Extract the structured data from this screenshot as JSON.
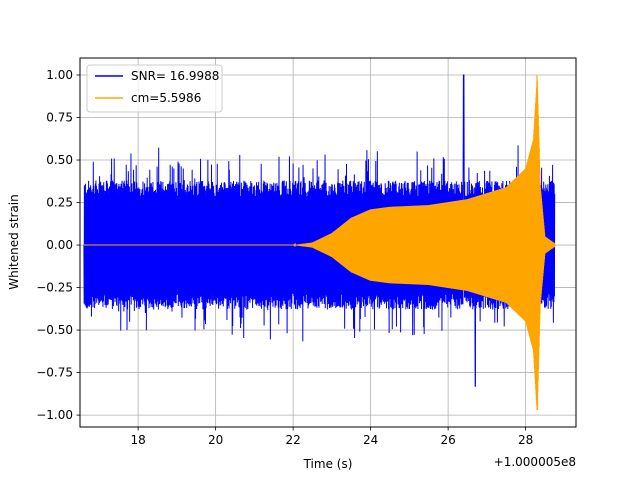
{
  "chart_data": {
    "type": "line",
    "xlabel": "Time (s)",
    "ylabel": "Whitened strain",
    "x_offset_label": "+1.000005e8",
    "xlim": [
      16.5,
      29.3
    ],
    "ylim": [
      -1.07,
      1.1
    ],
    "x_ticks": [
      18,
      20,
      22,
      24,
      26,
      28
    ],
    "x_tick_labels": [
      "18",
      "20",
      "22",
      "24",
      "26",
      "28"
    ],
    "y_ticks": [
      -1.0,
      -0.75,
      -0.5,
      -0.25,
      0.0,
      0.25,
      0.5,
      0.75,
      1.0
    ],
    "y_tick_labels": [
      "−1.00",
      "−0.75",
      "−0.50",
      "−0.25",
      "0.00",
      "0.25",
      "0.50",
      "0.75",
      "1.00"
    ],
    "grid": true,
    "legend_position": "top-left",
    "series": [
      {
        "name": "SNR= 16.9988",
        "color": "#0000ff",
        "description_kind": "noise",
        "x_start": 16.6,
        "x_end": 28.75,
        "typical_amplitude": 0.38,
        "peak_max": 1.0,
        "peak_max_x": 26.4,
        "peak_min": -0.83,
        "peak_min_x": 26.7
      },
      {
        "name": "cm=5.5986",
        "color": "#ffa500",
        "description_kind": "chirp",
        "x_start": 16.6,
        "x_end": 28.75,
        "envelope": [
          [
            16.6,
            0.0
          ],
          [
            22.0,
            0.0
          ],
          [
            22.5,
            0.015
          ],
          [
            23.0,
            0.07
          ],
          [
            23.5,
            0.16
          ],
          [
            24.0,
            0.21
          ],
          [
            24.5,
            0.225
          ],
          [
            25.5,
            0.235
          ],
          [
            26.5,
            0.27
          ],
          [
            27.5,
            0.34
          ],
          [
            28.0,
            0.45
          ],
          [
            28.2,
            0.62
          ],
          [
            28.3,
            1.0
          ],
          [
            28.38,
            0.35
          ],
          [
            28.5,
            0.05
          ],
          [
            28.75,
            0.01
          ]
        ],
        "peak_max": 1.0,
        "peak_min": -0.97,
        "peak_x": 28.3
      }
    ]
  }
}
